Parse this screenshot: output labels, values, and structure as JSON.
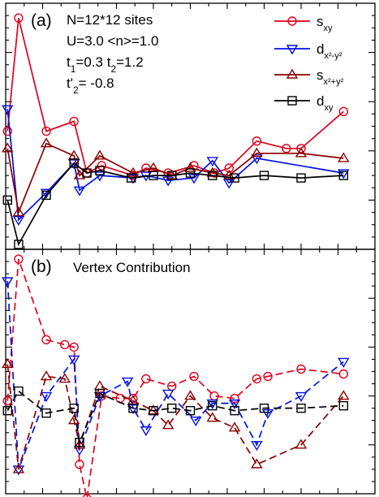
{
  "chart_data": [
    {
      "type": "line",
      "panel_label": "(a)",
      "annotation_lines": [
        "N=12*12 sites",
        "U=3.0 <n>=1.0",
        "t1=0.3 t2=1.2",
        "t'2= -0.8"
      ],
      "ylim": [
        0,
        1
      ],
      "xlim": [
        0,
        1
      ],
      "grid": false,
      "legend_position": "top-right",
      "series": [
        {
          "name": "s_xy",
          "color": "#e0001a",
          "marker": "circle",
          "line": "solid",
          "x": [
            0.005,
            0.035,
            0.11,
            0.185,
            0.22,
            0.26,
            0.345,
            0.38,
            0.44,
            0.51,
            0.565,
            0.605,
            0.68,
            0.76,
            0.8,
            0.915
          ],
          "y": [
            0.48,
            0.94,
            0.48,
            0.52,
            0.31,
            0.34,
            0.3,
            0.33,
            0.31,
            0.34,
            0.31,
            0.33,
            0.44,
            0.41,
            0.41,
            0.56
          ]
        },
        {
          "name": "d_{x²-y²}",
          "color": "#0010e8",
          "marker": "triangle-down",
          "line": "solid",
          "x": [
            0.005,
            0.035,
            0.11,
            0.185,
            0.2,
            0.255,
            0.345,
            0.38,
            0.44,
            0.51,
            0.56,
            0.605,
            0.68,
            0.915
          ],
          "y": [
            0.57,
            0.12,
            0.23,
            0.35,
            0.24,
            0.3,
            0.29,
            0.3,
            0.28,
            0.29,
            0.36,
            0.27,
            0.37,
            0.31
          ]
        },
        {
          "name": "s_{x²+y²}",
          "color": "#8b0000",
          "marker": "triangle-up",
          "line": "solid",
          "x": [
            0.005,
            0.035,
            0.11,
            0.185,
            0.2,
            0.255,
            0.345,
            0.4,
            0.45,
            0.5,
            0.56,
            0.605,
            0.68,
            0.8,
            0.915
          ],
          "y": [
            0.41,
            0.15,
            0.43,
            0.38,
            0.3,
            0.38,
            0.31,
            0.33,
            0.3,
            0.33,
            0.31,
            0.3,
            0.39,
            0.39,
            0.37
          ]
        },
        {
          "name": "d_xy",
          "color": "#000000",
          "marker": "square",
          "line": "solid",
          "x": [
            0.005,
            0.035,
            0.11,
            0.185,
            0.22,
            0.255,
            0.34,
            0.4,
            0.45,
            0.5,
            0.56,
            0.62,
            0.7,
            0.8,
            0.915
          ],
          "y": [
            0.2,
            0.02,
            0.22,
            0.35,
            0.31,
            0.32,
            0.29,
            0.3,
            0.3,
            0.31,
            0.3,
            0.29,
            0.3,
            0.29,
            0.3
          ]
        }
      ]
    },
    {
      "type": "line",
      "panel_label": "(b)",
      "annotation_lines": [
        "Vertex Contribution"
      ],
      "ylim": [
        0,
        1
      ],
      "xlim": [
        0,
        1
      ],
      "grid": false,
      "series": [
        {
          "name": "s_xy",
          "color": "#e0001a",
          "marker": "circle",
          "line": "dashed",
          "x": [
            0.005,
            0.035,
            0.11,
            0.16,
            0.185,
            0.2,
            0.22,
            0.26,
            0.31,
            0.345,
            0.38,
            0.45,
            0.51,
            0.565,
            0.62,
            0.68,
            0.71,
            0.8,
            0.915
          ],
          "y": [
            0.38,
            0.96,
            0.63,
            0.61,
            0.6,
            0.12,
            -0.02,
            0.4,
            0.39,
            0.39,
            0.47,
            0.44,
            0.48,
            0.4,
            0.39,
            0.47,
            0.48,
            0.51,
            0.49
          ]
        },
        {
          "name": "d_{x²-y²}",
          "color": "#0010e8",
          "marker": "triangle-down",
          "line": "dashed",
          "x": [
            0.005,
            0.035,
            0.11,
            0.185,
            0.2,
            0.255,
            0.33,
            0.345,
            0.38,
            0.44,
            0.515,
            0.56,
            0.62,
            0.68,
            0.71,
            0.8,
            0.915
          ],
          "y": [
            0.87,
            0.1,
            0.4,
            0.55,
            0.18,
            0.4,
            0.46,
            0.35,
            0.26,
            0.41,
            0.3,
            0.37,
            0.37,
            0.2,
            0.33,
            0.4,
            0.54
          ]
        },
        {
          "name": "s_{x²+y²}",
          "color": "#8b0000",
          "marker": "triangle-up",
          "line": "dashed",
          "x": [
            0.005,
            0.035,
            0.11,
            0.16,
            0.185,
            0.2,
            0.255,
            0.345,
            0.4,
            0.44,
            0.5,
            0.56,
            0.62,
            0.68,
            0.8,
            0.915
          ],
          "y": [
            0.53,
            0.1,
            0.48,
            0.47,
            0.3,
            0.2,
            0.44,
            0.38,
            0.34,
            0.28,
            0.4,
            0.31,
            0.27,
            0.12,
            0.2,
            0.4
          ]
        },
        {
          "name": "d_xy",
          "color": "#000000",
          "marker": "square",
          "line": "dashed",
          "x": [
            0.005,
            0.035,
            0.11,
            0.185,
            0.2,
            0.255,
            0.345,
            0.4,
            0.45,
            0.5,
            0.56,
            0.62,
            0.7,
            0.8,
            0.915
          ],
          "y": [
            0.34,
            0.42,
            0.33,
            0.35,
            0.21,
            0.41,
            0.35,
            0.34,
            0.35,
            0.34,
            0.36,
            0.34,
            0.35,
            0.35,
            0.36
          ]
        }
      ]
    }
  ]
}
